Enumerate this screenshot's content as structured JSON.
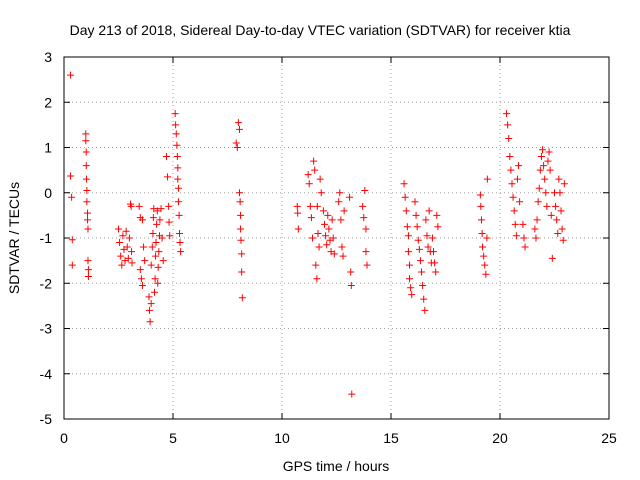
{
  "chart_data": {
    "type": "scatter",
    "title": "Day 213 of 2018, Sidereal Day-to-day VTEC variation (SDTVAR) for receiver ktia",
    "xlabel": "GPS time / hours",
    "ylabel": "SDTVAR / TECUs",
    "xlim": [
      0,
      25
    ],
    "ylim": [
      -5,
      3
    ],
    "xticks": [
      0,
      5,
      10,
      15,
      20,
      25
    ],
    "yticks": [
      -5,
      -4,
      -3,
      -2,
      -1,
      0,
      1,
      2,
      3
    ],
    "grid": true,
    "marker": "+",
    "color": "#ff0000",
    "series": [
      {
        "name": "SDTVAR",
        "points": [
          [
            0.3,
            2.6
          ],
          [
            0.3,
            0.37
          ],
          [
            0.35,
            -0.1
          ],
          [
            0.38,
            -1.04
          ],
          [
            0.38,
            -1.6
          ],
          [
            1.0,
            1.3
          ],
          [
            1.0,
            1.15
          ],
          [
            1.02,
            0.9
          ],
          [
            1.02,
            0.6
          ],
          [
            1.03,
            0.3
          ],
          [
            1.05,
            0.05
          ],
          [
            1.05,
            -0.2
          ],
          [
            1.08,
            -0.45
          ],
          [
            1.08,
            -0.6
          ],
          [
            1.1,
            -0.8
          ],
          [
            1.1,
            -1.5
          ],
          [
            1.12,
            -1.7
          ],
          [
            1.12,
            -1.85
          ],
          [
            2.5,
            -0.8
          ],
          [
            2.55,
            -1.1
          ],
          [
            2.6,
            -1.4
          ],
          [
            2.65,
            -1.6
          ],
          [
            2.7,
            -0.95
          ],
          [
            2.75,
            -1.25
          ],
          [
            2.8,
            -1.5
          ],
          [
            2.85,
            -0.85
          ],
          [
            2.9,
            -1.2
          ],
          [
            2.95,
            -1.45
          ],
          [
            3.0,
            -1.0
          ],
          [
            3.05,
            -0.25
          ],
          [
            3.08,
            -0.3
          ],
          [
            3.1,
            -1.3
          ],
          [
            3.12,
            -1.55
          ],
          [
            3.45,
            -0.3
          ],
          [
            3.5,
            -0.55
          ],
          [
            3.5,
            -1.7
          ],
          [
            3.55,
            -1.9
          ],
          [
            3.6,
            -2.05
          ],
          [
            3.6,
            -0.6
          ],
          [
            3.65,
            -1.2
          ],
          [
            3.7,
            -1.5
          ],
          [
            3.9,
            -2.3
          ],
          [
            3.92,
            -2.6
          ],
          [
            3.95,
            -2.85
          ],
          [
            4.0,
            -2.45
          ],
          [
            4.0,
            -1.6
          ],
          [
            4.05,
            -1.2
          ],
          [
            4.08,
            -0.9
          ],
          [
            4.1,
            -0.55
          ],
          [
            4.12,
            -0.35
          ],
          [
            4.15,
            -2.2
          ],
          [
            4.18,
            -1.9
          ],
          [
            4.2,
            -1.4
          ],
          [
            4.22,
            -1.1
          ],
          [
            4.25,
            -0.7
          ],
          [
            4.28,
            -0.4
          ],
          [
            4.3,
            -2.0
          ],
          [
            4.32,
            -1.65
          ],
          [
            4.35,
            -1.3
          ],
          [
            4.38,
            -0.95
          ],
          [
            4.4,
            -0.6
          ],
          [
            4.45,
            -0.35
          ],
          [
            4.5,
            -1.0
          ],
          [
            4.55,
            -1.5
          ],
          [
            4.7,
            0.8
          ],
          [
            4.75,
            0.35
          ],
          [
            4.8,
            -0.3
          ],
          [
            4.82,
            -0.65
          ],
          [
            4.85,
            -0.95
          ],
          [
            5.1,
            1.75
          ],
          [
            5.12,
            1.5
          ],
          [
            5.15,
            1.3
          ],
          [
            5.18,
            1.05
          ],
          [
            5.2,
            0.8
          ],
          [
            5.22,
            0.55
          ],
          [
            5.22,
            0.3
          ],
          [
            5.25,
            0.1
          ],
          [
            5.25,
            -0.2
          ],
          [
            5.28,
            -0.5
          ],
          [
            5.3,
            -0.9
          ],
          [
            5.32,
            -1.1
          ],
          [
            5.35,
            -1.3
          ],
          [
            7.9,
            1.1
          ],
          [
            7.95,
            1.0
          ],
          [
            8.0,
            1.55
          ],
          [
            8.05,
            1.4
          ],
          [
            8.05,
            0.0
          ],
          [
            8.08,
            -0.2
          ],
          [
            8.1,
            -0.5
          ],
          [
            8.1,
            -0.8
          ],
          [
            8.12,
            -1.05
          ],
          [
            8.15,
            -1.35
          ],
          [
            8.15,
            -1.75
          ],
          [
            8.18,
            -2.32
          ],
          [
            10.7,
            -0.3
          ],
          [
            10.72,
            -0.45
          ],
          [
            10.75,
            -0.8
          ],
          [
            11.2,
            0.4
          ],
          [
            11.25,
            0.2
          ],
          [
            11.3,
            -0.3
          ],
          [
            11.35,
            -0.55
          ],
          [
            11.4,
            -1.0
          ],
          [
            11.45,
            0.7
          ],
          [
            11.5,
            0.5
          ],
          [
            11.55,
            -1.6
          ],
          [
            11.6,
            -1.9
          ],
          [
            11.62,
            -0.3
          ],
          [
            11.65,
            -0.9
          ],
          [
            11.7,
            -1.2
          ],
          [
            11.75,
            0.3
          ],
          [
            11.8,
            0.0
          ],
          [
            11.9,
            -0.4
          ],
          [
            11.95,
            -0.7
          ],
          [
            12.0,
            -0.95
          ],
          [
            12.05,
            -1.15
          ],
          [
            12.1,
            -0.5
          ],
          [
            12.15,
            -0.8
          ],
          [
            12.2,
            -1.05
          ],
          [
            12.25,
            -1.3
          ],
          [
            12.3,
            -0.6
          ],
          [
            12.35,
            -1.0
          ],
          [
            12.4,
            -1.35
          ],
          [
            12.6,
            -0.2
          ],
          [
            12.65,
            0.0
          ],
          [
            12.7,
            -0.6
          ],
          [
            12.75,
            -1.2
          ],
          [
            12.8,
            -1.4
          ],
          [
            12.85,
            -0.4
          ],
          [
            13.1,
            -0.1
          ],
          [
            13.15,
            -1.75
          ],
          [
            13.18,
            -2.05
          ],
          [
            13.2,
            -4.45
          ],
          [
            13.7,
            -0.3
          ],
          [
            13.75,
            -0.55
          ],
          [
            13.8,
            0.05
          ],
          [
            13.85,
            -0.8
          ],
          [
            13.85,
            -1.3
          ],
          [
            13.9,
            -1.6
          ],
          [
            15.6,
            0.2
          ],
          [
            15.65,
            -0.1
          ],
          [
            15.7,
            -0.4
          ],
          [
            15.75,
            -0.75
          ],
          [
            15.8,
            -0.95
          ],
          [
            15.8,
            -1.3
          ],
          [
            15.85,
            -1.6
          ],
          [
            15.85,
            -1.9
          ],
          [
            15.9,
            -2.1
          ],
          [
            15.95,
            -2.25
          ],
          [
            16.1,
            -0.2
          ],
          [
            16.15,
            -0.5
          ],
          [
            16.2,
            -0.75
          ],
          [
            16.25,
            -1.05
          ],
          [
            16.3,
            -1.25
          ],
          [
            16.35,
            -1.5
          ],
          [
            16.4,
            -1.75
          ],
          [
            16.45,
            -2.05
          ],
          [
            16.5,
            -2.35
          ],
          [
            16.55,
            -2.6
          ],
          [
            16.6,
            -0.6
          ],
          [
            16.65,
            -0.95
          ],
          [
            16.7,
            -1.2
          ],
          [
            16.75,
            -0.4
          ],
          [
            16.8,
            -1.3
          ],
          [
            16.85,
            -1.55
          ],
          [
            16.9,
            -1.0
          ],
          [
            16.95,
            -1.3
          ],
          [
            17.0,
            -1.55
          ],
          [
            17.05,
            -1.75
          ],
          [
            17.1,
            -0.5
          ],
          [
            17.15,
            -0.75
          ],
          [
            19.1,
            -0.05
          ],
          [
            19.12,
            -0.3
          ],
          [
            19.15,
            -0.6
          ],
          [
            19.18,
            -0.9
          ],
          [
            19.2,
            -1.2
          ],
          [
            19.25,
            -1.4
          ],
          [
            19.3,
            -1.6
          ],
          [
            19.35,
            -1.8
          ],
          [
            19.4,
            -1.0
          ],
          [
            19.42,
            0.3
          ],
          [
            20.3,
            1.75
          ],
          [
            20.35,
            1.5
          ],
          [
            20.4,
            1.2
          ],
          [
            20.45,
            0.8
          ],
          [
            20.5,
            0.5
          ],
          [
            20.55,
            0.2
          ],
          [
            20.6,
            -0.1
          ],
          [
            20.65,
            -0.4
          ],
          [
            20.7,
            -0.7
          ],
          [
            20.75,
            -0.95
          ],
          [
            20.8,
            0.3
          ],
          [
            20.85,
            0.6
          ],
          [
            20.9,
            -0.2
          ],
          [
            21.05,
            -0.7
          ],
          [
            21.1,
            -1.0
          ],
          [
            21.15,
            -1.2
          ],
          [
            21.6,
            -0.8
          ],
          [
            21.65,
            -1.0
          ],
          [
            21.7,
            -0.6
          ],
          [
            21.75,
            -0.2
          ],
          [
            21.8,
            0.1
          ],
          [
            21.85,
            0.5
          ],
          [
            21.9,
            0.8
          ],
          [
            21.95,
            0.95
          ],
          [
            22.0,
            0.6
          ],
          [
            22.05,
            0.3
          ],
          [
            22.1,
            0.0
          ],
          [
            22.15,
            -0.3
          ],
          [
            22.2,
            0.7
          ],
          [
            22.25,
            0.9
          ],
          [
            22.3,
            0.5
          ],
          [
            22.35,
            -0.5
          ],
          [
            22.4,
            -1.45
          ],
          [
            22.5,
            0.0
          ],
          [
            22.55,
            -0.3
          ],
          [
            22.6,
            -0.6
          ],
          [
            22.65,
            -0.9
          ],
          [
            22.7,
            0.3
          ],
          [
            22.75,
            0.0
          ],
          [
            22.8,
            -0.4
          ],
          [
            22.85,
            -0.8
          ],
          [
            22.9,
            -1.05
          ],
          [
            22.95,
            0.2
          ]
        ]
      }
    ]
  }
}
